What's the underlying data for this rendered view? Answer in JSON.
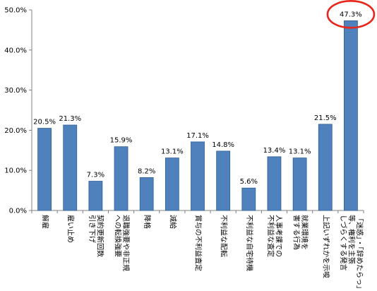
{
  "chart_data": {
    "type": "bar",
    "categories": [
      [
        "解雇"
      ],
      [
        "雇い止め"
      ],
      [
        "契約更新回数",
        "引き下げ"
      ],
      [
        "退職強要や非正規",
        "への転換強要"
      ],
      [
        "降格"
      ],
      [
        "減給"
      ],
      [
        "賞与の不利益査定"
      ],
      [
        "不利益な配転"
      ],
      [
        "不利益な自宅待機"
      ],
      [
        "人事考課での",
        "不利益な査定"
      ],
      [
        "就業環境を",
        "害する行為"
      ],
      [
        "上記いずれかを示唆"
      ],
      [
        "「迷惑」・「辞めたらっ」",
        "等、権利を主張",
        "しづらくする発言"
      ]
    ],
    "values": [
      20.5,
      21.3,
      7.3,
      15.9,
      8.2,
      13.1,
      17.1,
      14.8,
      5.6,
      13.4,
      13.1,
      21.5,
      47.3
    ],
    "data_labels": [
      "20.5%",
      "21.3%",
      "7.3%",
      "15.9%",
      "8.2%",
      "13.1%",
      "17.1%",
      "14.8%",
      "5.6%",
      "13.4%",
      "13.1%",
      "21.5%",
      "47.3%"
    ],
    "y_ticks": [
      "0.0%",
      "10.0%",
      "20.0%",
      "30.0%",
      "40.0%",
      "50.0%"
    ],
    "y_tick_values": [
      0,
      10,
      20,
      30,
      40,
      50
    ],
    "ylim": [
      0,
      50
    ],
    "grid": false,
    "legend": "none",
    "highlight_index": 12,
    "colors": {
      "bar_fill": "#4f81bd",
      "bar_stroke": "#2f5f96",
      "axis": "#808080",
      "highlight_ring": "#e8261c"
    }
  }
}
